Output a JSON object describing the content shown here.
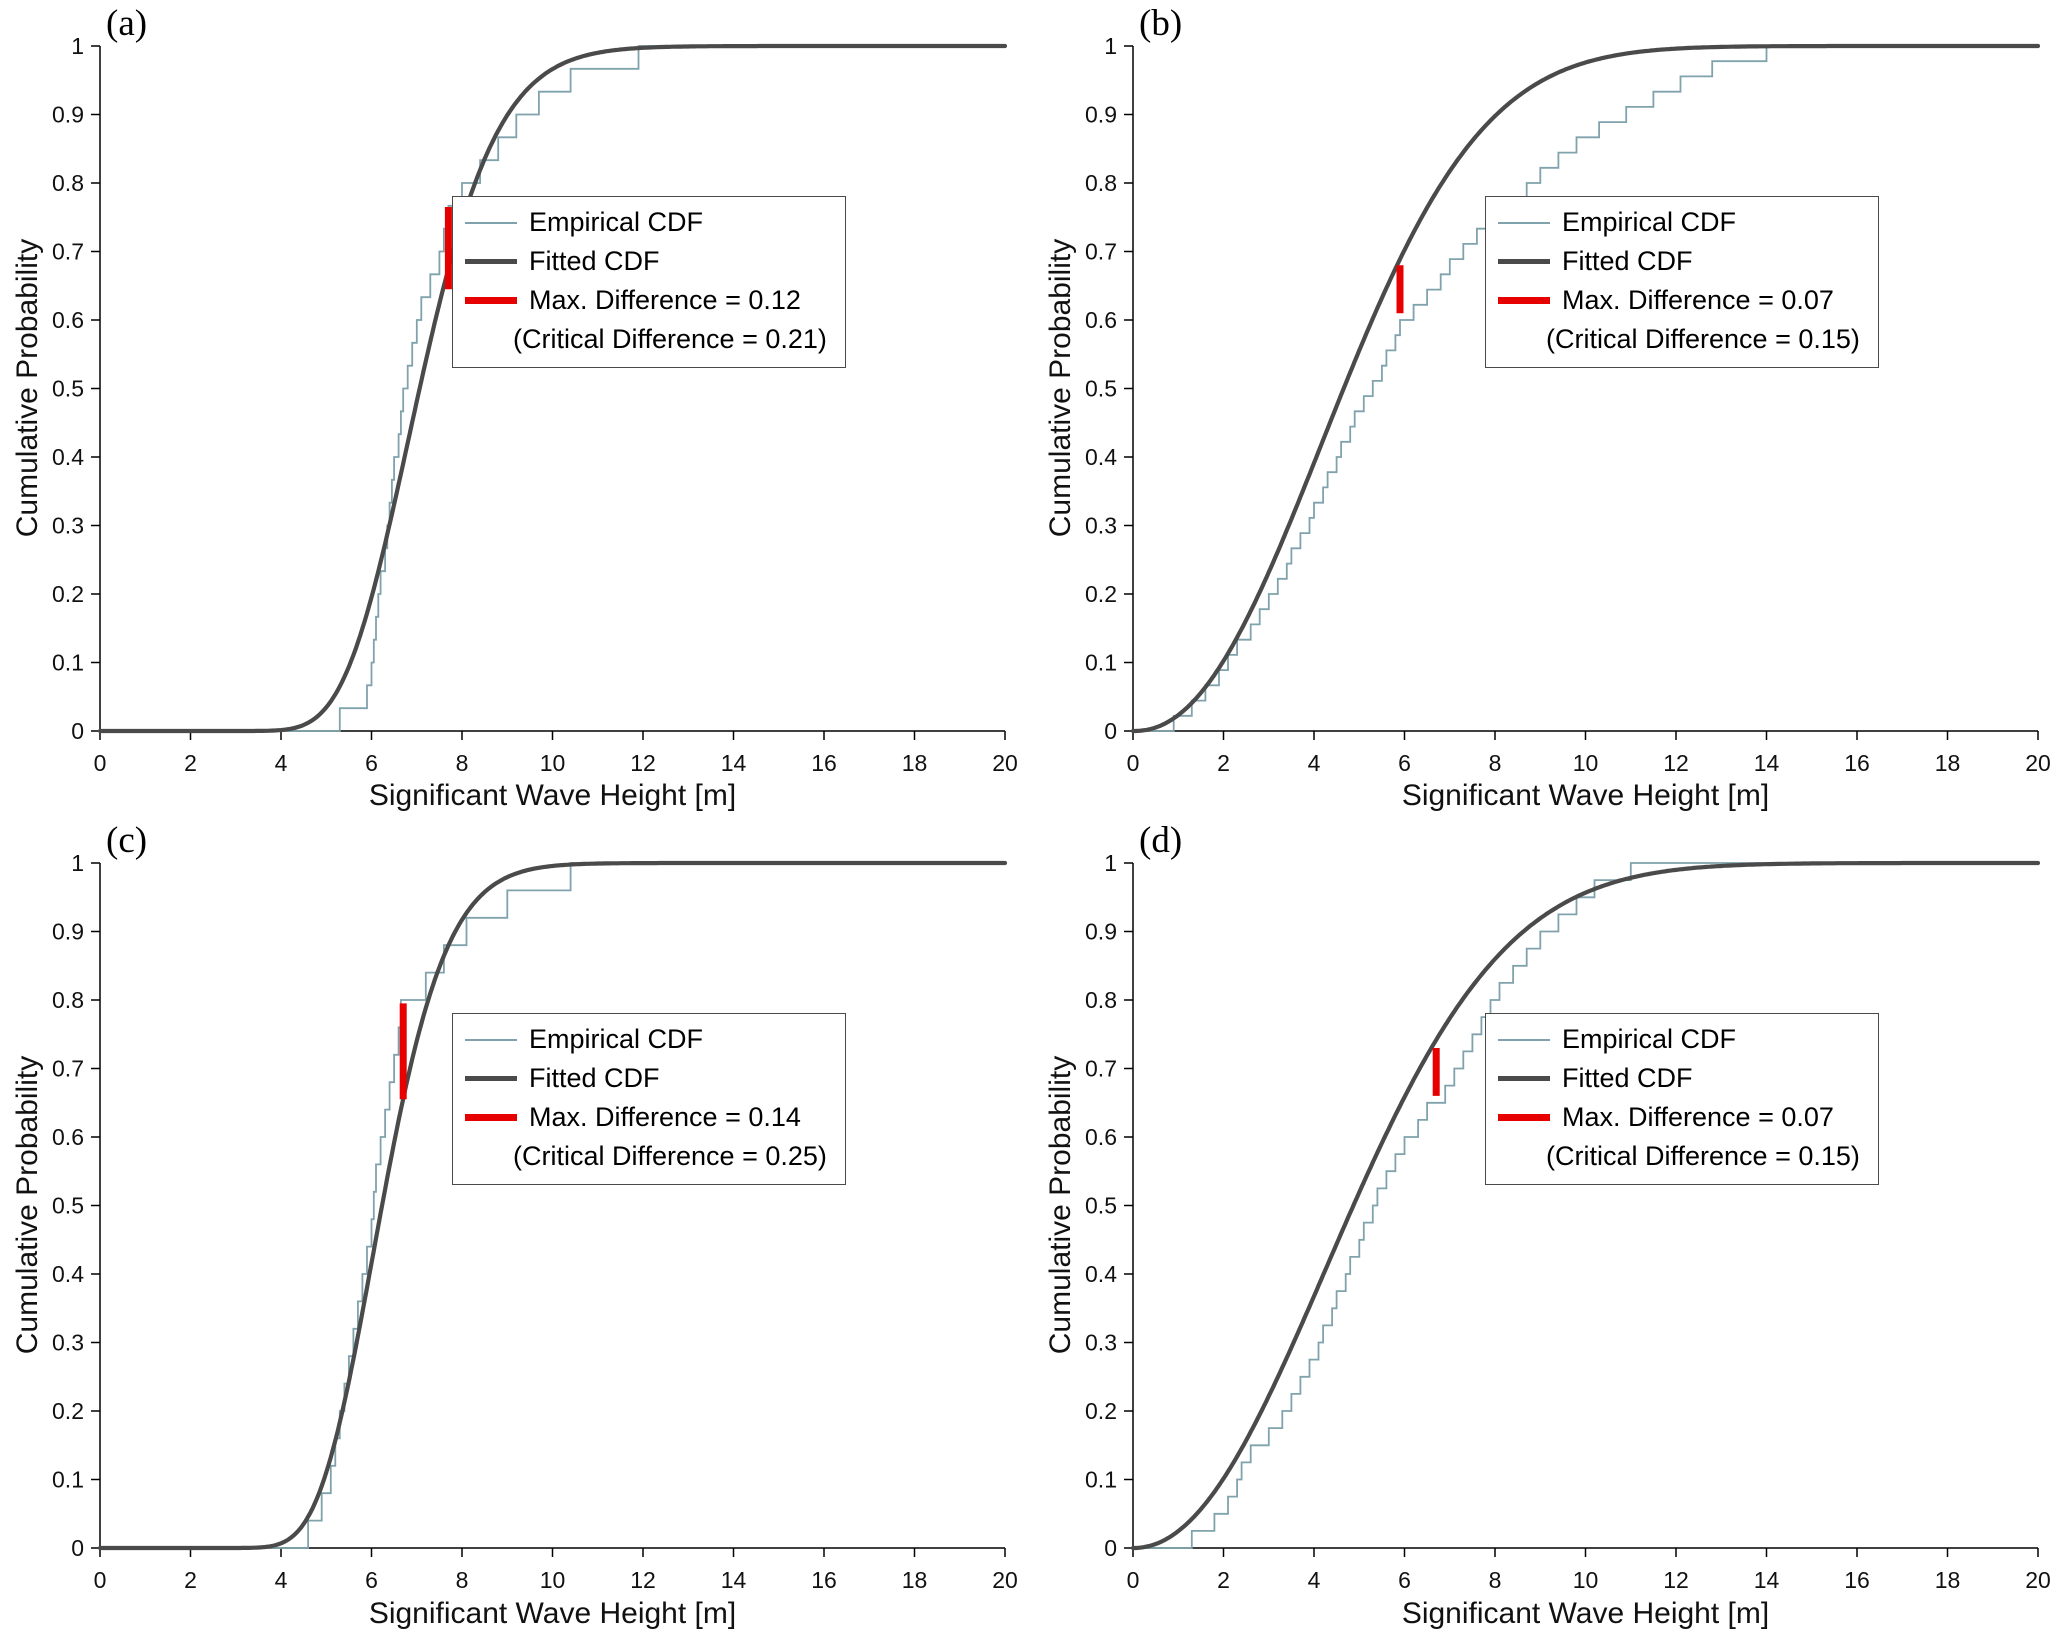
{
  "colors": {
    "empirical": "#7fa2ac",
    "fitted": "#4a4a4a",
    "difference": "#e60000",
    "axis": "#000000",
    "legend_border": "#4a4a4a"
  },
  "chart_data": [
    {
      "type": "line",
      "panel_label": "(a)",
      "xlabel": "Significant Wave Height [m]",
      "ylabel": "Cumulative Probability",
      "xlim": [
        0,
        20
      ],
      "ylim": [
        0,
        1
      ],
      "xticks": [
        0,
        2,
        4,
        6,
        8,
        10,
        12,
        14,
        16,
        18,
        20
      ],
      "yticks": [
        0,
        0.1,
        0.2,
        0.3,
        0.4,
        0.5,
        0.6,
        0.7,
        0.8,
        0.9,
        1
      ],
      "legend": {
        "empirical": "Empirical CDF",
        "fitted": "Fitted CDF",
        "max_difference": "Max. Difference = 0.12",
        "critical_difference": "(Critical Difference = 0.21)"
      },
      "max_difference_value": 0.12,
      "critical_difference_value": 0.21,
      "fitted_curve": {
        "type": "lognormal",
        "mu": 1.955,
        "sigma": 0.19
      },
      "empirical_samples": [
        5.3,
        5.9,
        6.0,
        6.05,
        6.1,
        6.15,
        6.2,
        6.3,
        6.35,
        6.4,
        6.45,
        6.5,
        6.6,
        6.65,
        6.7,
        6.8,
        6.9,
        7.0,
        7.1,
        7.3,
        7.5,
        7.6,
        7.7,
        8.0,
        8.4,
        8.8,
        9.2,
        9.7,
        10.4,
        11.9
      ],
      "max_difference_marker": {
        "x": 7.7,
        "y_from": 0.645,
        "y_to": 0.765
      }
    },
    {
      "type": "line",
      "panel_label": "(b)",
      "xlabel": "Significant Wave Height [m]",
      "ylabel": "Cumulative Probability",
      "xlim": [
        0,
        20
      ],
      "ylim": [
        0,
        1
      ],
      "xticks": [
        0,
        2,
        4,
        6,
        8,
        10,
        12,
        14,
        16,
        18,
        20
      ],
      "yticks": [
        0,
        0.1,
        0.2,
        0.3,
        0.4,
        0.5,
        0.6,
        0.7,
        0.8,
        0.9,
        1
      ],
      "legend": {
        "empirical": "Empirical CDF",
        "fitted": "Fitted CDF",
        "max_difference": "Max. Difference = 0.07",
        "critical_difference": "(Critical Difference = 0.15)"
      },
      "max_difference_value": 0.07,
      "critical_difference_value": 0.15,
      "fitted_curve": {
        "type": "weibull",
        "lambda": 5.5,
        "k": 2.2
      },
      "empirical_samples": [
        0.9,
        1.3,
        1.6,
        1.9,
        2.1,
        2.3,
        2.6,
        2.8,
        3.0,
        3.2,
        3.4,
        3.5,
        3.7,
        3.9,
        4.0,
        4.2,
        4.3,
        4.5,
        4.6,
        4.8,
        4.9,
        5.1,
        5.3,
        5.5,
        5.6,
        5.8,
        5.9,
        6.2,
        6.5,
        6.8,
        7.0,
        7.3,
        7.6,
        8.0,
        8.3,
        8.7,
        9.0,
        9.4,
        9.8,
        10.3,
        10.9,
        11.5,
        12.1,
        12.8,
        14.0
      ],
      "max_difference_marker": {
        "x": 5.9,
        "y_from": 0.61,
        "y_to": 0.68
      }
    },
    {
      "type": "line",
      "panel_label": "(c)",
      "xlabel": "Significant Wave Height [m]",
      "ylabel": "Cumulative Probability",
      "xlim": [
        0,
        20
      ],
      "ylim": [
        0,
        1
      ],
      "xticks": [
        0,
        2,
        4,
        6,
        8,
        10,
        12,
        14,
        16,
        18,
        20
      ],
      "yticks": [
        0,
        0.1,
        0.2,
        0.3,
        0.4,
        0.5,
        0.6,
        0.7,
        0.8,
        0.9,
        1
      ],
      "legend": {
        "empirical": "Empirical CDF",
        "fitted": "Fitted CDF",
        "max_difference": "Max. Difference = 0.14",
        "critical_difference": "(Critical Difference = 0.25)"
      },
      "max_difference_value": 0.14,
      "critical_difference_value": 0.25,
      "fitted_curve": {
        "type": "lognormal",
        "mu": 1.83,
        "sigma": 0.18
      },
      "empirical_samples": [
        4.6,
        4.9,
        5.1,
        5.2,
        5.3,
        5.4,
        5.5,
        5.6,
        5.7,
        5.8,
        5.9,
        6.0,
        6.05,
        6.1,
        6.2,
        6.3,
        6.4,
        6.5,
        6.6,
        6.65,
        7.2,
        7.6,
        8.1,
        9.0,
        10.4
      ],
      "max_difference_marker": {
        "x": 6.7,
        "y_from": 0.655,
        "y_to": 0.795
      }
    },
    {
      "type": "line",
      "panel_label": "(d)",
      "xlabel": "Significant Wave Height [m]",
      "ylabel": "Cumulative Probability",
      "xlim": [
        0,
        20
      ],
      "ylim": [
        0,
        1
      ],
      "xticks": [
        0,
        2,
        4,
        6,
        8,
        10,
        12,
        14,
        16,
        18,
        20
      ],
      "yticks": [
        0,
        0.1,
        0.2,
        0.3,
        0.4,
        0.5,
        0.6,
        0.7,
        0.8,
        0.9,
        1
      ],
      "legend": {
        "empirical": "Empirical CDF",
        "fitted": "Fitted CDF",
        "max_difference": "Max. Difference = 0.07",
        "critical_difference": "(Critical Difference = 0.15)"
      },
      "max_difference_value": 0.07,
      "critical_difference_value": 0.15,
      "fitted_curve": {
        "type": "weibull",
        "lambda": 5.8,
        "k": 2.1
      },
      "empirical_samples": [
        1.3,
        1.8,
        2.1,
        2.3,
        2.4,
        2.6,
        3.0,
        3.3,
        3.5,
        3.7,
        3.9,
        4.1,
        4.2,
        4.4,
        4.5,
        4.7,
        4.8,
        5.0,
        5.1,
        5.3,
        5.4,
        5.6,
        5.8,
        6.0,
        6.3,
        6.5,
        6.9,
        7.1,
        7.3,
        7.5,
        7.7,
        7.9,
        8.1,
        8.4,
        8.7,
        9.0,
        9.4,
        9.8,
        10.2,
        11.0
      ],
      "max_difference_marker": {
        "x": 6.7,
        "y_from": 0.66,
        "y_to": 0.73
      }
    }
  ]
}
